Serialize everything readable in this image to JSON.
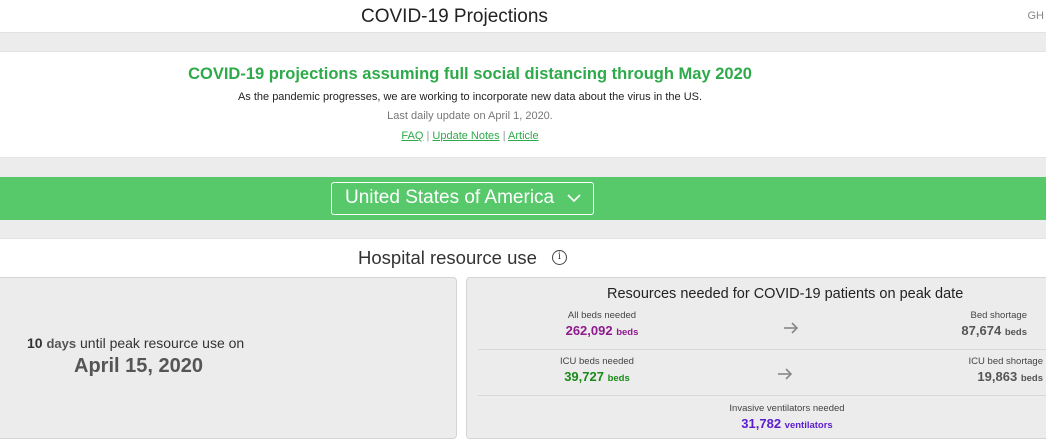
{
  "header": {
    "title": "COVID-19 Projections",
    "right_text": "GH"
  },
  "intro": {
    "headline": "COVID-19 projections assuming full social distancing through May 2020",
    "subtext": "As the pandemic progresses, we are working to incorporate new data about the virus in the US.",
    "update": "Last daily update on April 1, 2020.",
    "links": [
      "FAQ",
      "Update Notes",
      "Article"
    ],
    "separator": "|"
  },
  "location": {
    "selected": "United States of America",
    "icon": "chevron-down-icon"
  },
  "hospital": {
    "title": "Hospital resource use",
    "info_icon": "i",
    "peak": {
      "days": "10",
      "days_unit": "days",
      "until_text": "until peak resource use on",
      "date": "April 15, 2020"
    },
    "resources": {
      "title": "Resources needed for COVID-19 patients on peak date",
      "all_beds": {
        "label": "All beds needed",
        "value": "262,092",
        "unit": "beds",
        "color": "#8e1b8e"
      },
      "bed_shortage": {
        "label": "Bed shortage",
        "value": "87,674",
        "unit": "beds",
        "color": "#555555"
      },
      "icu_beds": {
        "label": "ICU beds needed",
        "value": "39,727",
        "unit": "beds",
        "color": "#1a8a1a"
      },
      "icu_shortage": {
        "label": "ICU bed shortage",
        "value": "19,863",
        "unit": "beds",
        "color": "#555555"
      },
      "ventilators": {
        "label": "Invasive ventilators needed",
        "value": "31,782",
        "unit": "ventilators",
        "color": "#5b1bd0"
      }
    }
  },
  "colors": {
    "accent_green": "#2eaa4a",
    "bar_green": "#57c96b"
  }
}
